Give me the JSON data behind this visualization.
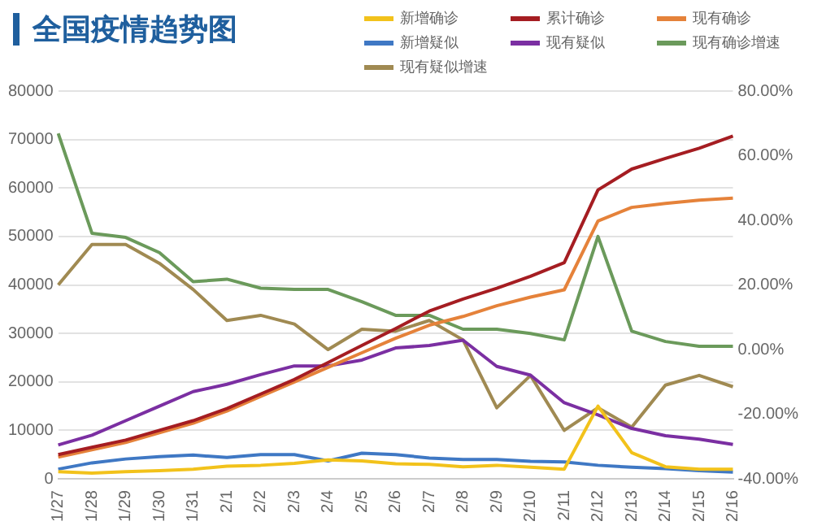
{
  "chart_data": {
    "type": "line",
    "title": "全国疫情趋势图",
    "categories": [
      "1/27",
      "1/28",
      "1/29",
      "1/30",
      "1/31",
      "2/1",
      "2/2",
      "2/3",
      "2/4",
      "2/5",
      "2/6",
      "2/7",
      "2/8",
      "2/9",
      "2/10",
      "2/11",
      "2/12",
      "2/13",
      "2/14",
      "2/15",
      "2/16"
    ],
    "series": [
      {
        "name": "新增确诊",
        "color": "#f2c21b",
        "values": [
          1500,
          1200,
          1500,
          1700,
          2000,
          2600,
          2800,
          3200,
          3900,
          3700,
          3100,
          3000,
          2500,
          2800,
          2400,
          2000,
          15000,
          5400,
          2500,
          2000,
          2000
        ]
      },
      {
        "name": "累计确诊",
        "color": "#a51d22",
        "values": [
          5000,
          6500,
          8000,
          10000,
          12000,
          14500,
          17500,
          20500,
          24000,
          27500,
          31000,
          34600,
          37100,
          39300,
          41800,
          44600,
          59600,
          63900,
          66100,
          68200,
          70700
        ]
      },
      {
        "name": "现有确诊",
        "color": "#e5823a",
        "values": [
          4500,
          6000,
          7500,
          9500,
          11500,
          14000,
          17000,
          20000,
          23000,
          26000,
          29000,
          31700,
          33500,
          35700,
          37500,
          39000,
          53200,
          56000,
          56800,
          57500,
          57900
        ]
      },
      {
        "name": "新增疑似",
        "color": "#3f78c4",
        "values": [
          2000,
          3300,
          4100,
          4600,
          4900,
          4400,
          5000,
          5000,
          3700,
          5300,
          5000,
          4300,
          4000,
          4000,
          3600,
          3500,
          2800,
          2400,
          2100,
          1700,
          1400
        ]
      },
      {
        "name": "现有疑似",
        "color": "#7b2fa2",
        "values": [
          7000,
          9000,
          12000,
          15000,
          18000,
          19500,
          21500,
          23300,
          23300,
          24500,
          27000,
          27500,
          28600,
          23200,
          21400,
          15700,
          13200,
          10400,
          8900,
          8200,
          7100
        ]
      },
      {
        "name": "现有确诊增速",
        "color": "#6b9a5b",
        "axis": "y2",
        "values": [
          66.9,
          36,
          34.7,
          30,
          21,
          21.8,
          19,
          18.6,
          18.6,
          14.8,
          10.6,
          10.6,
          6.3,
          6.3,
          5,
          3,
          35,
          5.7,
          2.5,
          1,
          1
        ]
      },
      {
        "name": "现有疑似增速",
        "color": "#a08a52",
        "axis": "y2",
        "values": [
          20,
          32.5,
          32.5,
          26.7,
          18.6,
          9,
          10.6,
          7.9,
          0,
          6.3,
          5.7,
          9,
          3,
          -18,
          -8,
          -25,
          -18,
          -24,
          -11,
          -8,
          -11.5
        ]
      }
    ],
    "ylim": [
      0,
      80000
    ],
    "yticks": [
      0,
      10000,
      20000,
      30000,
      40000,
      50000,
      60000,
      70000,
      80000
    ],
    "y2lim": [
      -40,
      80
    ],
    "y2ticks": [
      {
        "value": -40,
        "label": "-40.00%"
      },
      {
        "value": -20,
        "label": "-20.00%"
      },
      {
        "value": 0,
        "label": "0.00%"
      },
      {
        "value": 20,
        "label": "20.00%"
      },
      {
        "value": 40,
        "label": "40.00%"
      },
      {
        "value": 60,
        "label": "60.00%"
      },
      {
        "value": 80,
        "label": "80.00%"
      }
    ],
    "grid": "y",
    "legend": "top right",
    "marker": "none",
    "line_style": "solid"
  }
}
